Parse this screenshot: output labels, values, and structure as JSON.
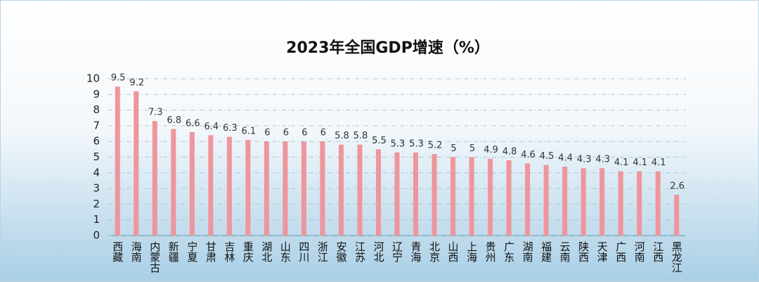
{
  "chart_data": {
    "type": "bar",
    "title": "2023年全国GDP增速（%）",
    "categories": [
      "西藏",
      "海南",
      "内蒙古",
      "新疆",
      "宁夏",
      "甘肃",
      "吉林",
      "重庆",
      "湖北",
      "山东",
      "四川",
      "浙江",
      "安徽",
      "江苏",
      "河北",
      "辽宁",
      "青海",
      "北京",
      "山西",
      "上海",
      "贵州",
      "广东",
      "湖南",
      "福建",
      "云南",
      "陕西",
      "天津",
      "广西",
      "河南",
      "江西",
      "黑龙江"
    ],
    "values": [
      9.5,
      9.2,
      7.3,
      6.8,
      6.6,
      6.4,
      6.3,
      6.1,
      6,
      6,
      6,
      6,
      5.8,
      5.8,
      5.5,
      5.3,
      5.3,
      5.2,
      5,
      5,
      4.9,
      4.8,
      4.6,
      4.5,
      4.4,
      4.3,
      4.3,
      4.1,
      4.1,
      4.1,
      2.6
    ],
    "color": "#ef959c",
    "ylim": [
      0,
      10
    ],
    "yticks": [
      0,
      1,
      2,
      3,
      4,
      5,
      6,
      7,
      8,
      9,
      10
    ],
    "grid": true
  }
}
